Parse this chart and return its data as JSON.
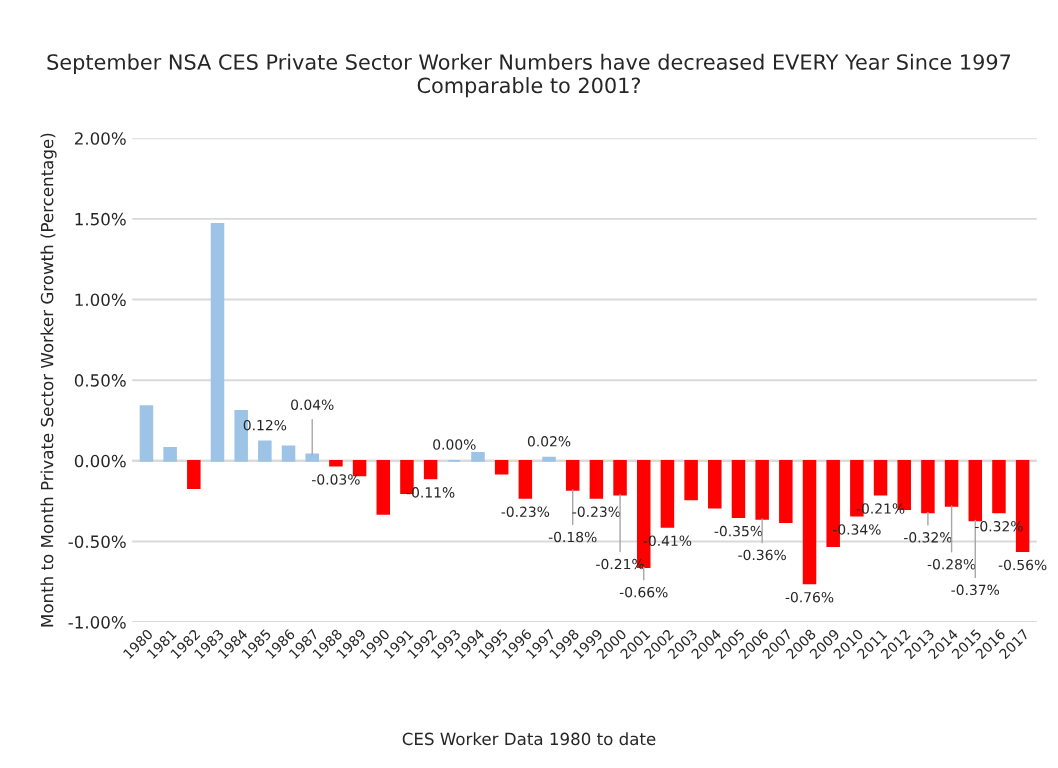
{
  "chart_data": {
    "type": "bar",
    "title": "September NSA CES Private Sector Worker Numbers have decreased EVERY Year Since 1997\nComparable to 2001?",
    "xlabel": "CES Worker Data 1980 to date",
    "ylabel": "Month to Month Private Sector Worker Growth (Percentage)",
    "categories": [
      "1980",
      "1981",
      "1982",
      "1983",
      "1984",
      "1985",
      "1986",
      "1987",
      "1988",
      "1989",
      "1990",
      "1991",
      "1992",
      "1993",
      "1994",
      "1995",
      "1996",
      "1997",
      "1998",
      "1999",
      "2000",
      "2001",
      "2002",
      "2003",
      "2004",
      "2005",
      "2006",
      "2007",
      "2008",
      "2009",
      "2010",
      "2011",
      "2012",
      "2013",
      "2014",
      "2015",
      "2016",
      "2017"
    ],
    "values": [
      0.34,
      0.08,
      -0.17,
      1.47,
      0.31,
      0.12,
      0.09,
      0.04,
      -0.03,
      -0.09,
      -0.33,
      -0.2,
      -0.11,
      0.0,
      0.05,
      -0.08,
      -0.23,
      0.02,
      -0.18,
      -0.23,
      -0.21,
      -0.66,
      -0.41,
      -0.24,
      -0.29,
      -0.35,
      -0.36,
      -0.38,
      -0.76,
      -0.53,
      -0.34,
      -0.21,
      -0.3,
      -0.32,
      -0.28,
      -0.37,
      -0.32,
      -0.56
    ],
    "value_labels": [
      null,
      null,
      null,
      null,
      null,
      "0.12%",
      null,
      "0.04%",
      "-0.03%",
      null,
      null,
      null,
      "-0.11%",
      "0.00%",
      null,
      null,
      "-0.23%",
      "0.02%",
      "-0.18%",
      "-0.23%",
      "-0.21%",
      "-0.66%",
      "-0.41%",
      null,
      null,
      "-0.35%",
      "-0.36%",
      null,
      "-0.76%",
      null,
      "-0.34%",
      "-0.21%",
      null,
      "-0.32%",
      "-0.28%",
      "-0.37%",
      "-0.32%",
      "-0.56%"
    ],
    "colors": [
      "#9dc3e6",
      "#9dc3e6",
      "#ff0000",
      "#9dc3e6",
      "#9dc3e6",
      "#9dc3e6",
      "#9dc3e6",
      "#9dc3e6",
      "#ff0000",
      "#ff0000",
      "#ff0000",
      "#ff0000",
      "#ff0000",
      "#9dc3e6",
      "#9dc3e6",
      "#ff0000",
      "#ff0000",
      "#9dc3e6",
      "#ff0000",
      "#ff0000",
      "#ff0000",
      "#ff0000",
      "#ff0000",
      "#ff0000",
      "#ff0000",
      "#ff0000",
      "#ff0000",
      "#ff0000",
      "#ff0000",
      "#ff0000",
      "#ff0000",
      "#ff0000",
      "#ff0000",
      "#ff0000",
      "#ff0000",
      "#ff0000",
      "#ff0000",
      "#ff0000"
    ],
    "ylim": [
      -1.0,
      2.0
    ],
    "yticks": [
      {
        "value": -1.0,
        "label": "-1.00%"
      },
      {
        "value": -0.5,
        "label": "-0.50%"
      },
      {
        "value": 0,
        "label": "0.00%"
      },
      {
        "value": 0.5,
        "label": "0.50%"
      },
      {
        "value": 1.0,
        "label": "1.00%"
      },
      {
        "value": 1.5,
        "label": "1.50%"
      },
      {
        "value": 2.0,
        "label": "2.00%"
      }
    ],
    "grid": "y",
    "legend": false
  }
}
